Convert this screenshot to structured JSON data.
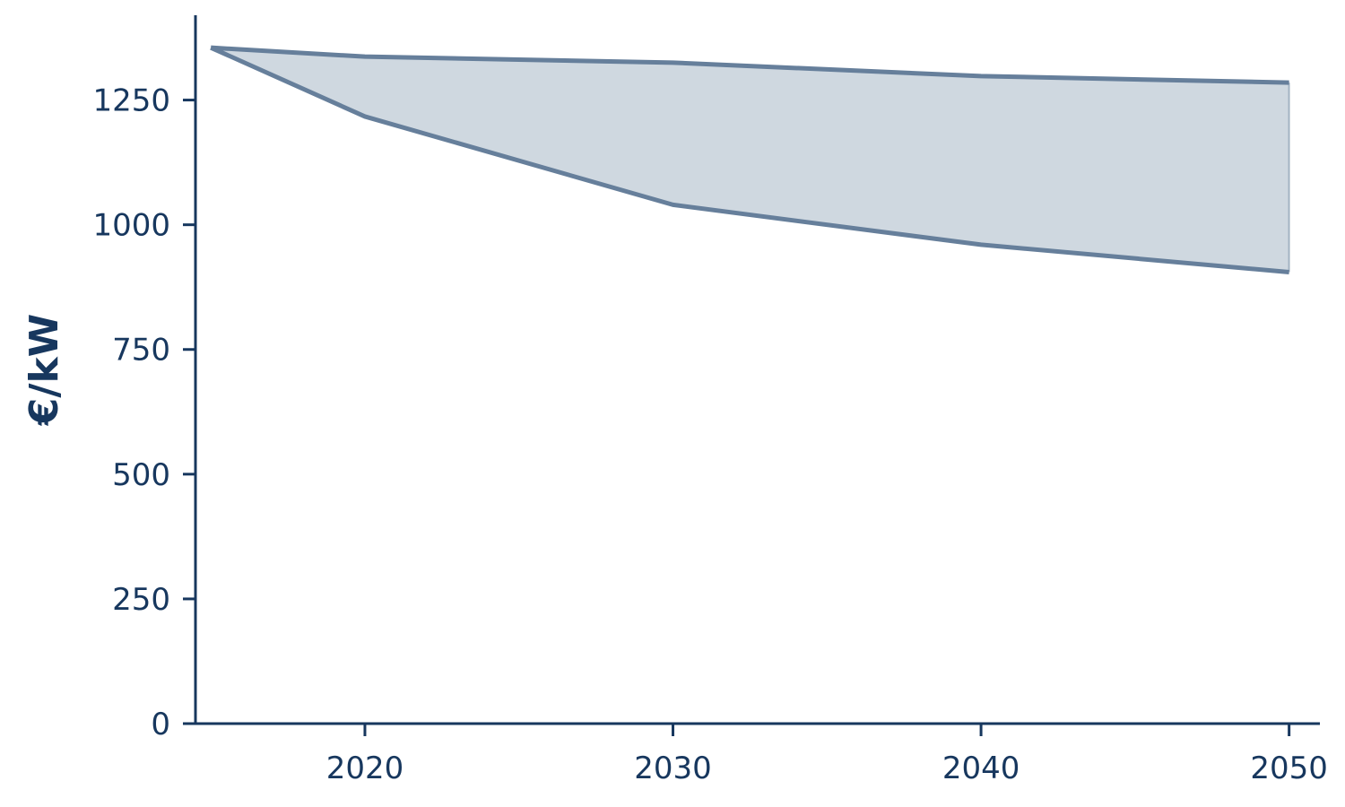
{
  "chart_data": {
    "type": "area",
    "title": "",
    "xlabel": "",
    "ylabel": "€/kW",
    "x": [
      2015,
      2020,
      2030,
      2040,
      2050
    ],
    "series": [
      {
        "values": [
          1355,
          1337,
          1325,
          1298,
          1285
        ]
      },
      {
        "values": [
          1355,
          1217,
          1040,
          960,
          905
        ]
      }
    ],
    "xlim": [
      2014.5,
      2051
    ],
    "ylim": [
      0,
      1420
    ],
    "xticks": [
      2020,
      2030,
      2040,
      2050
    ],
    "yticks": [
      0,
      250,
      500,
      750,
      1000,
      1250
    ],
    "grid": false,
    "legend": "none",
    "colors": {
      "axis": "#17375e",
      "line": "#667f9b",
      "fill": "#cfd8e0",
      "text": "#17375e"
    }
  }
}
